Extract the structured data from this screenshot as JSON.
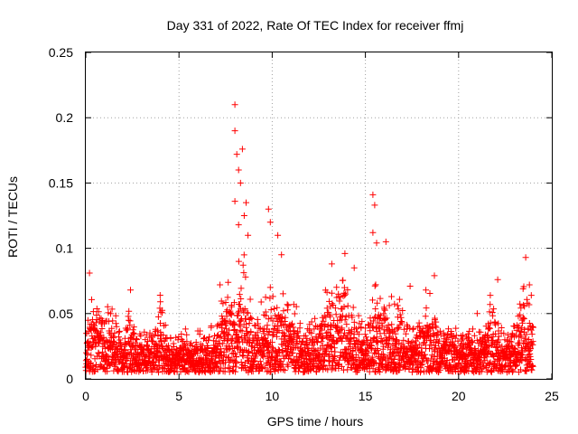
{
  "chart_data": {
    "type": "scatter",
    "title": "Day 331 of 2022, Rate Of TEC Index for receiver ffmj",
    "xlabel": "GPS time / hours",
    "ylabel": "ROTI / TECUs",
    "xlim": [
      0,
      25
    ],
    "ylim": [
      0,
      0.25
    ],
    "xticks": [
      "0",
      "5",
      "10",
      "15",
      "20",
      "25"
    ],
    "yticks": [
      "0",
      "0.05",
      "0.1",
      "0.15",
      "0.2",
      "0.25"
    ],
    "grid": true,
    "marker": "+",
    "color": "#ff0000",
    "series": [
      {
        "name": "ROTI",
        "n_points": 2880,
        "x_range": [
          0,
          24
        ],
        "baseline_range": [
          0.0,
          0.035
        ],
        "notable_points": [
          {
            "x": 0.2,
            "y": 0.081
          },
          {
            "x": 2.4,
            "y": 0.068
          },
          {
            "x": 4.0,
            "y": 0.059
          },
          {
            "x": 7.2,
            "y": 0.072
          },
          {
            "x": 8.0,
            "y": 0.21
          },
          {
            "x": 8.0,
            "y": 0.19
          },
          {
            "x": 8.4,
            "y": 0.176
          },
          {
            "x": 8.1,
            "y": 0.172
          },
          {
            "x": 8.2,
            "y": 0.16
          },
          {
            "x": 8.3,
            "y": 0.15
          },
          {
            "x": 8.6,
            "y": 0.135
          },
          {
            "x": 8.0,
            "y": 0.136
          },
          {
            "x": 8.5,
            "y": 0.125
          },
          {
            "x": 8.2,
            "y": 0.118
          },
          {
            "x": 8.7,
            "y": 0.11
          },
          {
            "x": 9.8,
            "y": 0.13
          },
          {
            "x": 9.9,
            "y": 0.12
          },
          {
            "x": 10.3,
            "y": 0.11
          },
          {
            "x": 10.5,
            "y": 0.095
          },
          {
            "x": 13.2,
            "y": 0.088
          },
          {
            "x": 13.9,
            "y": 0.096
          },
          {
            "x": 14.4,
            "y": 0.085
          },
          {
            "x": 15.4,
            "y": 0.141
          },
          {
            "x": 15.5,
            "y": 0.133
          },
          {
            "x": 15.4,
            "y": 0.112
          },
          {
            "x": 15.6,
            "y": 0.104
          },
          {
            "x": 16.1,
            "y": 0.105
          },
          {
            "x": 17.4,
            "y": 0.071
          },
          {
            "x": 18.7,
            "y": 0.079
          },
          {
            "x": 21.0,
            "y": 0.05
          },
          {
            "x": 22.1,
            "y": 0.076
          },
          {
            "x": 23.6,
            "y": 0.093
          },
          {
            "x": 23.8,
            "y": 0.072
          },
          {
            "x": 23.9,
            "y": 0.064
          }
        ],
        "clusters": [
          {
            "center": 0.5,
            "width": 0.5,
            "amp": 0.035
          },
          {
            "center": 1.4,
            "width": 0.3,
            "amp": 0.04
          },
          {
            "center": 2.4,
            "width": 0.2,
            "amp": 0.035
          },
          {
            "center": 4.0,
            "width": 0.2,
            "amp": 0.035
          },
          {
            "center": 7.5,
            "width": 0.4,
            "amp": 0.05
          },
          {
            "center": 8.4,
            "width": 0.5,
            "amp": 0.07
          },
          {
            "center": 9.8,
            "width": 0.5,
            "amp": 0.05
          },
          {
            "center": 10.8,
            "width": 0.6,
            "amp": 0.045
          },
          {
            "center": 13.0,
            "width": 0.7,
            "amp": 0.045
          },
          {
            "center": 14.0,
            "width": 0.6,
            "amp": 0.055
          },
          {
            "center": 15.6,
            "width": 0.5,
            "amp": 0.055
          },
          {
            "center": 16.6,
            "width": 0.5,
            "amp": 0.04
          },
          {
            "center": 18.5,
            "width": 0.6,
            "amp": 0.04
          },
          {
            "center": 21.8,
            "width": 0.4,
            "amp": 0.035
          },
          {
            "center": 23.6,
            "width": 0.4,
            "amp": 0.05
          }
        ]
      }
    ]
  }
}
